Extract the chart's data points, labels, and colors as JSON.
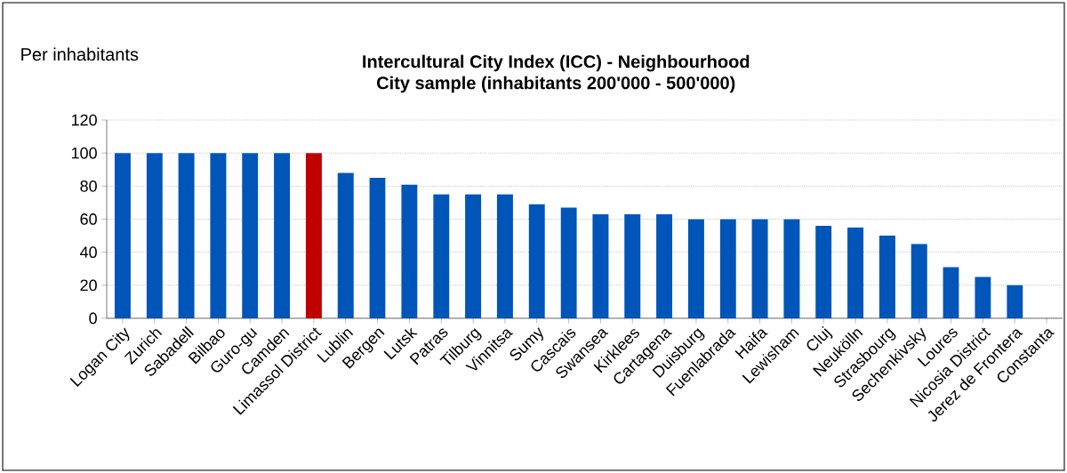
{
  "chart_data": {
    "type": "bar",
    "title": "Intercultural City Index (ICC) - Neighbourhood\nCity sample (inhabitants 200'000 - 500'000)",
    "ylabel": "Per inhabitants",
    "categories": [
      "Logan City",
      "Zurich",
      "Sabadell",
      "Bilbao",
      "Guro-gu",
      "Camden",
      "Limassol District",
      "Lublin",
      "Bergen",
      "Lutsk",
      "Patras",
      "Tilburg",
      "Vinnitsa",
      "Sumy",
      "Cascais",
      "Swansea",
      "Kirklees",
      "Cartagena",
      "Duisburg",
      "Fuenlabrada",
      "Haifa",
      "Lewisham",
      "Cluj",
      "Neukölln",
      "Strasbourg",
      "Sechenkivsky",
      "Loures",
      "Nicosia District",
      "Jerez de Frontera",
      "Constanta"
    ],
    "values": [
      100,
      100,
      100,
      100,
      100,
      100,
      100,
      88,
      85,
      81,
      75,
      75,
      75,
      69,
      67,
      63,
      63,
      63,
      60,
      60,
      60,
      60,
      56,
      55,
      50,
      45,
      31,
      25,
      20,
      0
    ],
    "colors": [
      "#0055b8",
      "#0055b8",
      "#0055b8",
      "#0055b8",
      "#0055b8",
      "#0055b8",
      "#c00000",
      "#0055b8",
      "#0055b8",
      "#0055b8",
      "#0055b8",
      "#0055b8",
      "#0055b8",
      "#0055b8",
      "#0055b8",
      "#0055b8",
      "#0055b8",
      "#0055b8",
      "#0055b8",
      "#0055b8",
      "#0055b8",
      "#0055b8",
      "#0055b8",
      "#0055b8",
      "#0055b8",
      "#0055b8",
      "#0055b8",
      "#0055b8",
      "#0055b8",
      "#0055b8"
    ],
    "ylim": [
      0,
      120
    ],
    "yticks": [
      0,
      20,
      40,
      60,
      80,
      100,
      120
    ],
    "grid": "y"
  }
}
